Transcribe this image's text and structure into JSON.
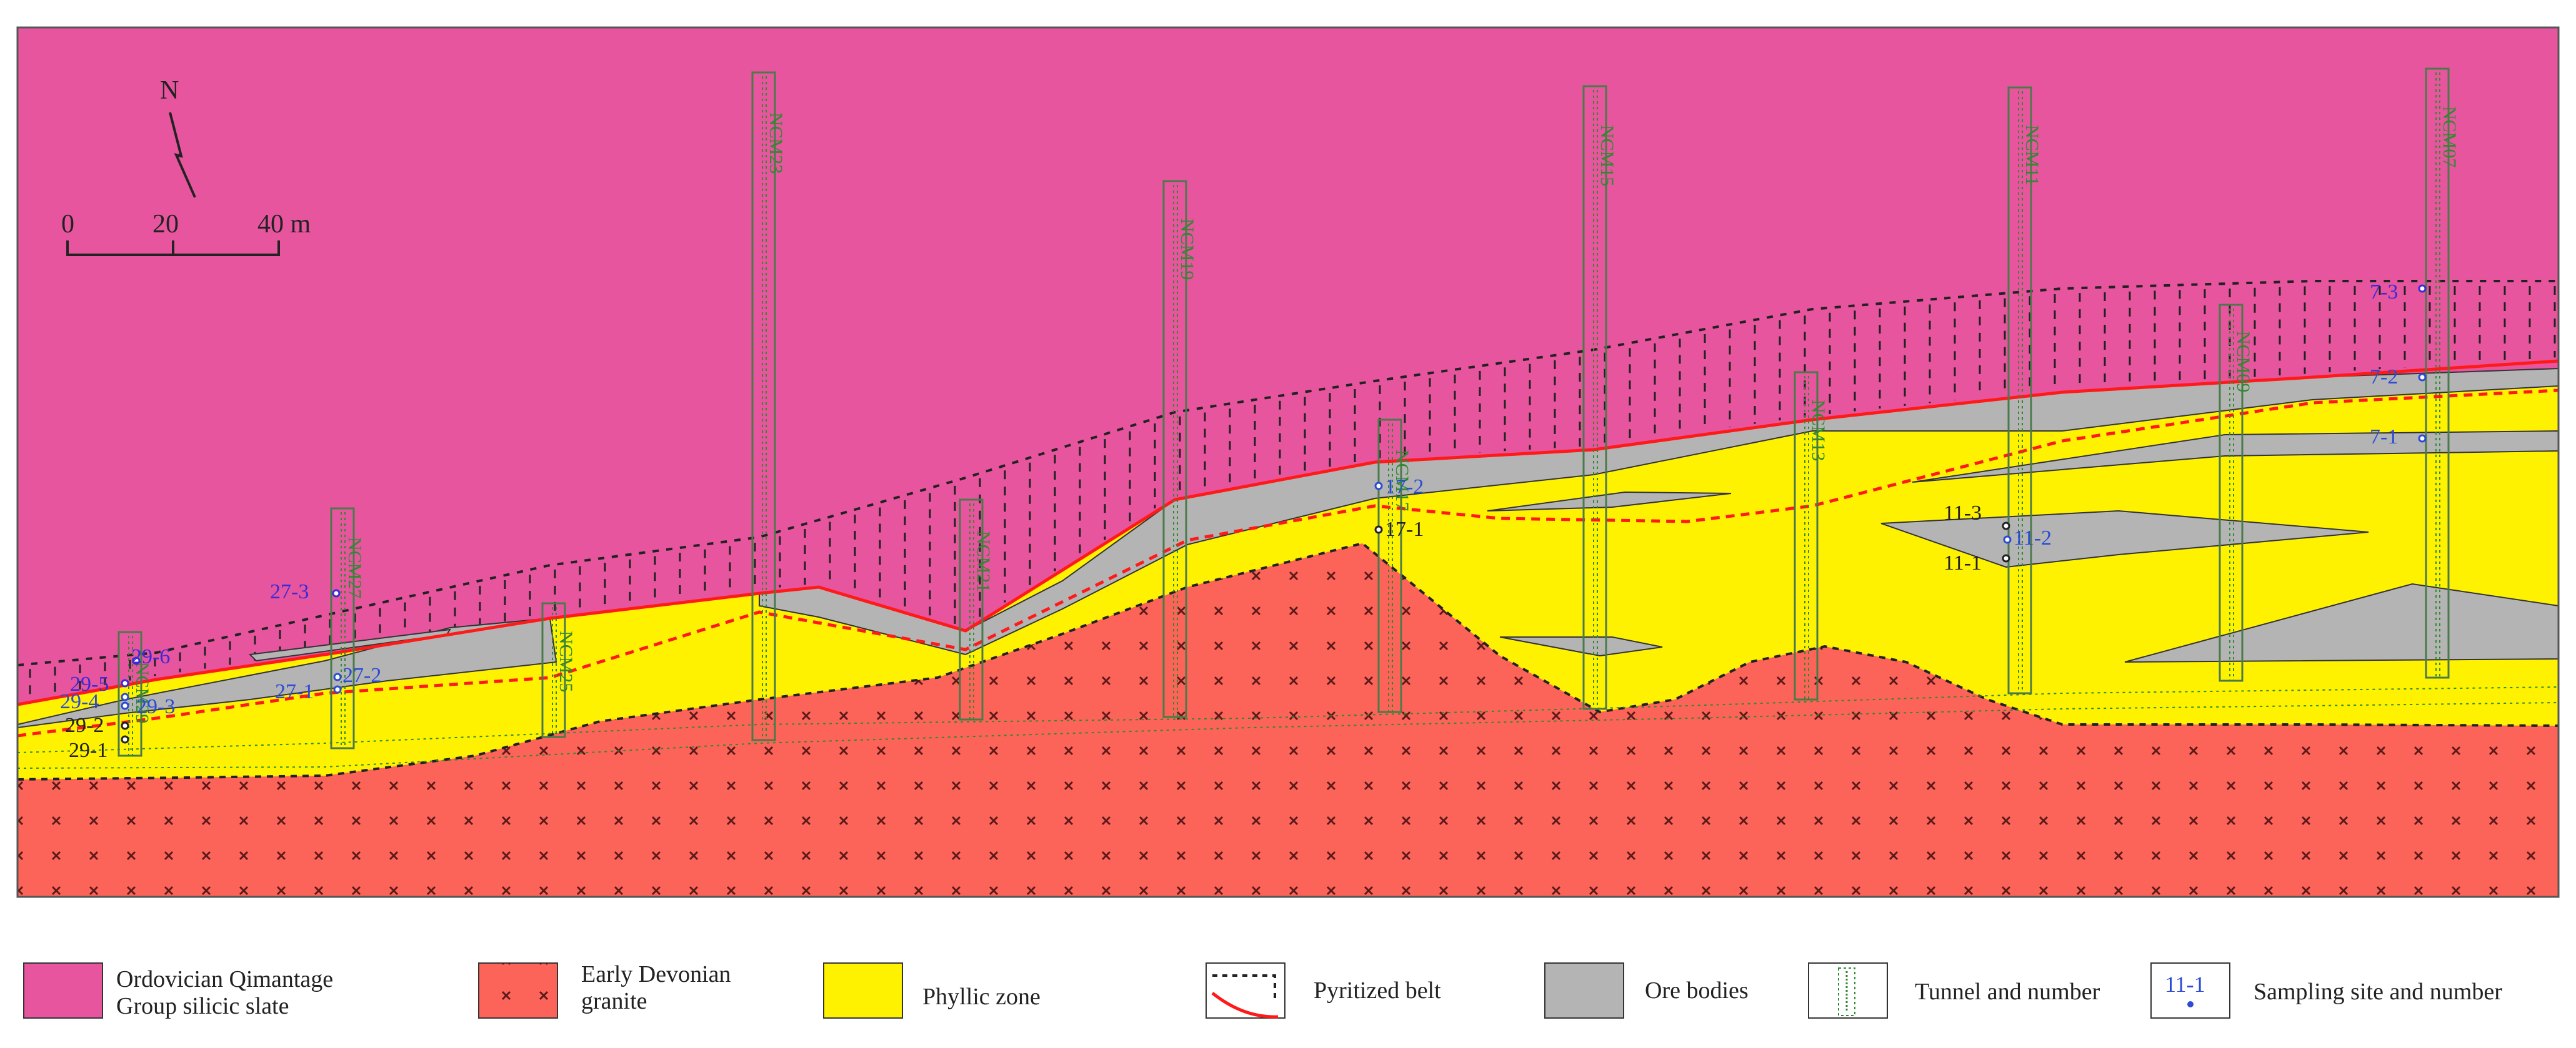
{
  "north": {
    "label": "N"
  },
  "scale": {
    "ticks": [
      "0",
      "20",
      "40 m"
    ]
  },
  "colors": {
    "slate": "#e7559f",
    "granite": "#fd6459",
    "phyllic": "#fff200",
    "ore": "#b4b4b4",
    "pyrite_line": "#ff2a2a",
    "tunnel": "#2f8a2f",
    "sample_blue": "#2b4bd6"
  },
  "tunnels": [
    {
      "id": "t29",
      "label": "NCM29"
    },
    {
      "id": "t27",
      "label": "NCM27"
    },
    {
      "id": "t25",
      "label": "NCM25"
    },
    {
      "id": "t23",
      "label": "NCM23"
    },
    {
      "id": "t21",
      "label": "NCM21"
    },
    {
      "id": "t19",
      "label": "NCM19"
    },
    {
      "id": "t17",
      "label": "NCM17"
    },
    {
      "id": "t15",
      "label": "NCM15"
    },
    {
      "id": "t13",
      "label": "NCM13"
    },
    {
      "id": "t11",
      "label": "NCM11"
    },
    {
      "id": "t09",
      "label": "NCM09"
    },
    {
      "id": "t07",
      "label": "NCM07"
    }
  ],
  "samples": [
    {
      "id": "s29-6",
      "label": "29-6"
    },
    {
      "id": "s29-5",
      "label": "29-5"
    },
    {
      "id": "s29-4",
      "label": "29-4"
    },
    {
      "id": "s29-3",
      "label": "29-3"
    },
    {
      "id": "s29-2",
      "label": "29-2"
    },
    {
      "id": "s29-1",
      "label": "29-1"
    },
    {
      "id": "s27-3",
      "label": "27-3"
    },
    {
      "id": "s27-2",
      "label": "27-2"
    },
    {
      "id": "s27-1",
      "label": "27-1"
    },
    {
      "id": "s17-2",
      "label": "17-2"
    },
    {
      "id": "s17-1",
      "label": "17-1"
    },
    {
      "id": "s11-3",
      "label": "11-3"
    },
    {
      "id": "s11-2",
      "label": "11-2"
    },
    {
      "id": "s11-1",
      "label": "11-1"
    },
    {
      "id": "s7-3",
      "label": "7-3"
    },
    {
      "id": "s7-2",
      "label": "7-2"
    },
    {
      "id": "s7-1",
      "label": "7-1"
    }
  ],
  "legend": {
    "slate": {
      "line1": "Ordovician Qimantage",
      "line2": "Group silicic  slate"
    },
    "granite": {
      "line1": "Early Devonian",
      "line2": "granite"
    },
    "phyllic": {
      "label": "Phyllic zone"
    },
    "pyrite": {
      "label": "Pyritized belt"
    },
    "ore": {
      "label": "Ore bodies"
    },
    "tunnel": {
      "label": "Tunnel and number"
    },
    "sampling": {
      "label": "Sampling site and number",
      "example": "11-1"
    }
  }
}
